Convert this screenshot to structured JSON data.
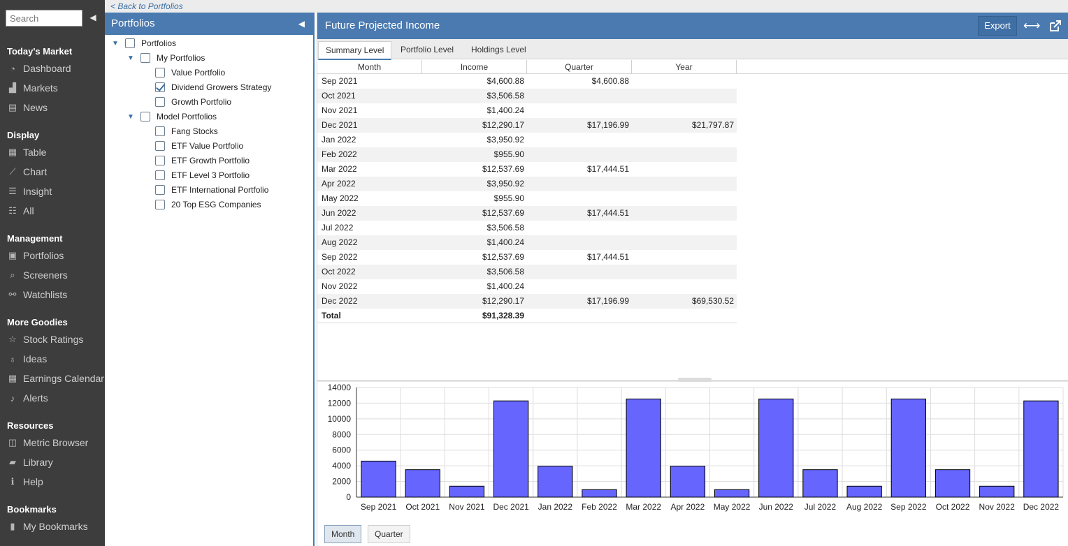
{
  "nav": {
    "search_placeholder": "Search",
    "sections": [
      {
        "title": "Today's Market",
        "items": [
          {
            "label": "Dashboard",
            "icon": "dashboard-icon"
          },
          {
            "label": "Markets",
            "icon": "area-chart-icon"
          },
          {
            "label": "News",
            "icon": "newspaper-icon"
          }
        ]
      },
      {
        "title": "Display",
        "items": [
          {
            "label": "Table",
            "icon": "table-icon"
          },
          {
            "label": "Chart",
            "icon": "line-chart-icon"
          },
          {
            "label": "Insight",
            "icon": "list-icon"
          },
          {
            "label": "All",
            "icon": "list-alt-icon"
          }
        ]
      },
      {
        "title": "Management",
        "items": [
          {
            "label": "Portfolios",
            "icon": "briefcase-icon"
          },
          {
            "label": "Screeners",
            "icon": "search-icon"
          },
          {
            "label": "Watchlists",
            "icon": "binoculars-icon"
          }
        ]
      },
      {
        "title": "More Goodies",
        "items": [
          {
            "label": "Stock Ratings",
            "icon": "star-icon"
          },
          {
            "label": "Ideas",
            "icon": "lightbulb-icon"
          },
          {
            "label": "Earnings Calendar",
            "icon": "calendar-icon"
          },
          {
            "label": "Alerts",
            "icon": "bell-icon"
          }
        ]
      },
      {
        "title": "Resources",
        "items": [
          {
            "label": "Metric Browser",
            "icon": "columns-icon"
          },
          {
            "label": "Library",
            "icon": "book-icon"
          },
          {
            "label": "Help",
            "icon": "info-icon"
          }
        ]
      },
      {
        "title": "Bookmarks",
        "items": [
          {
            "label": "My Bookmarks",
            "icon": "bookmark-icon"
          }
        ]
      }
    ]
  },
  "back_link": "< Back to Portfolios",
  "portfolios_panel": {
    "title": "Portfolios",
    "tree": [
      {
        "label": "Portfolios",
        "level": 0,
        "expandable": true,
        "checked": false
      },
      {
        "label": "My Portfolios",
        "level": 1,
        "expandable": true,
        "checked": false
      },
      {
        "label": "Value Portfolio",
        "level": 2,
        "expandable": false,
        "checked": false
      },
      {
        "label": "Dividend Growers Strategy",
        "level": 2,
        "expandable": false,
        "checked": true
      },
      {
        "label": "Growth Portfolio",
        "level": 2,
        "expandable": false,
        "checked": false
      },
      {
        "label": "Model Portfolios",
        "level": 1,
        "expandable": true,
        "checked": false
      },
      {
        "label": "Fang Stocks",
        "level": 2,
        "expandable": false,
        "checked": false
      },
      {
        "label": "ETF Value Portfolio",
        "level": 2,
        "expandable": false,
        "checked": false
      },
      {
        "label": "ETF Growth Portfolio",
        "level": 2,
        "expandable": false,
        "checked": false
      },
      {
        "label": "ETF Level 3 Portfolio",
        "level": 2,
        "expandable": false,
        "checked": false
      },
      {
        "label": "ETF International Portfolio",
        "level": 2,
        "expandable": false,
        "checked": false
      },
      {
        "label": "20 Top ESG Companies",
        "level": 2,
        "expandable": false,
        "checked": false
      }
    ]
  },
  "main": {
    "title": "Future Projected Income",
    "export_label": "Export",
    "tabs": [
      {
        "label": "Summary Level",
        "active": true
      },
      {
        "label": "Portfolio Level",
        "active": false
      },
      {
        "label": "Holdings Level",
        "active": false
      }
    ],
    "columns": [
      "Month",
      "Income",
      "Quarter",
      "Year"
    ],
    "rows": [
      {
        "month": "Sep 2021",
        "income": "$4,600.88",
        "quarter": "$4,600.88",
        "year": ""
      },
      {
        "month": "Oct 2021",
        "income": "$3,506.58",
        "quarter": "",
        "year": ""
      },
      {
        "month": "Nov 2021",
        "income": "$1,400.24",
        "quarter": "",
        "year": ""
      },
      {
        "month": "Dec 2021",
        "income": "$12,290.17",
        "quarter": "$17,196.99",
        "year": "$21,797.87"
      },
      {
        "month": "Jan 2022",
        "income": "$3,950.92",
        "quarter": "",
        "year": ""
      },
      {
        "month": "Feb 2022",
        "income": "$955.90",
        "quarter": "",
        "year": ""
      },
      {
        "month": "Mar 2022",
        "income": "$12,537.69",
        "quarter": "$17,444.51",
        "year": ""
      },
      {
        "month": "Apr 2022",
        "income": "$3,950.92",
        "quarter": "",
        "year": ""
      },
      {
        "month": "May 2022",
        "income": "$955.90",
        "quarter": "",
        "year": ""
      },
      {
        "month": "Jun 2022",
        "income": "$12,537.69",
        "quarter": "$17,444.51",
        "year": ""
      },
      {
        "month": "Jul 2022",
        "income": "$3,506.58",
        "quarter": "",
        "year": ""
      },
      {
        "month": "Aug 2022",
        "income": "$1,400.24",
        "quarter": "",
        "year": ""
      },
      {
        "month": "Sep 2022",
        "income": "$12,537.69",
        "quarter": "$17,444.51",
        "year": ""
      },
      {
        "month": "Oct 2022",
        "income": "$3,506.58",
        "quarter": "",
        "year": ""
      },
      {
        "month": "Nov 2022",
        "income": "$1,400.24",
        "quarter": "",
        "year": ""
      },
      {
        "month": "Dec 2022",
        "income": "$12,290.17",
        "quarter": "$17,196.99",
        "year": "$69,530.52"
      }
    ],
    "total": {
      "label": "Total",
      "income": "$91,328.39"
    },
    "mode_buttons": [
      {
        "label": "Month",
        "active": true
      },
      {
        "label": "Quarter",
        "active": false
      }
    ]
  },
  "chart_data": {
    "type": "bar",
    "categories": [
      "Sep 2021",
      "Oct 2021",
      "Nov 2021",
      "Dec 2021",
      "Jan 2022",
      "Feb 2022",
      "Mar 2022",
      "Apr 2022",
      "May 2022",
      "Jun 2022",
      "Jul 2022",
      "Aug 2022",
      "Sep 2022",
      "Oct 2022",
      "Nov 2022",
      "Dec 2022"
    ],
    "values": [
      4600.88,
      3506.58,
      1400.24,
      12290.17,
      3950.92,
      955.9,
      12537.69,
      3950.92,
      955.9,
      12537.69,
      3506.58,
      1400.24,
      12537.69,
      3506.58,
      1400.24,
      12290.17
    ],
    "yticks": [
      0,
      2000,
      4000,
      6000,
      8000,
      10000,
      12000,
      14000
    ],
    "ylim": [
      0,
      14000
    ],
    "grid": true,
    "bar_color": "#6666ff",
    "bar_stroke": "#000000"
  },
  "colors": {
    "accent": "#4a7ab0",
    "nav_bg": "#3d3d3d"
  }
}
